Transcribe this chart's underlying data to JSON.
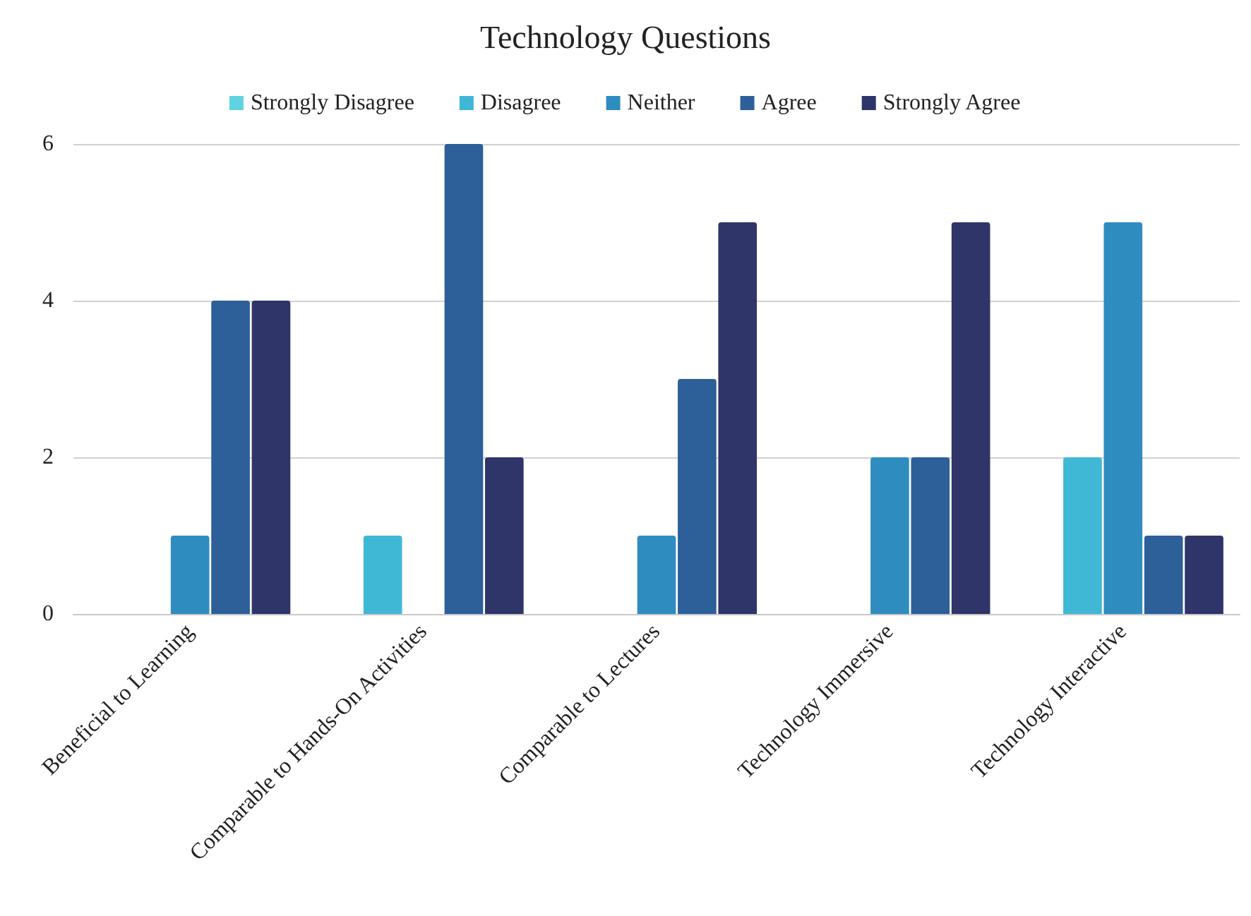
{
  "chart_data": {
    "type": "bar",
    "title": "Technology Questions",
    "categories": [
      "Beneficial to Learning",
      "Comparable to Hands-On Activities",
      "Comparable to Lectures",
      "Technology Immersive",
      "Technology Interactive"
    ],
    "series": [
      {
        "name": "Strongly Disagree",
        "color": "#5fd3e0",
        "values": [
          0,
          0,
          0,
          0,
          0
        ]
      },
      {
        "name": "Disagree",
        "color": "#3fb8d6",
        "values": [
          0,
          1,
          0,
          0,
          2
        ]
      },
      {
        "name": "Neither",
        "color": "#2e8cbf",
        "values": [
          1,
          0,
          1,
          2,
          5
        ]
      },
      {
        "name": "Agree",
        "color": "#2d5f99",
        "values": [
          4,
          6,
          3,
          2,
          1
        ]
      },
      {
        "name": "Strongly Agree",
        "color": "#2f3469",
        "values": [
          4,
          2,
          5,
          5,
          1
        ]
      }
    ],
    "ylim": [
      0,
      6
    ],
    "yticks": [
      0,
      2,
      4,
      6
    ],
    "grid": "y",
    "legend": "top"
  }
}
